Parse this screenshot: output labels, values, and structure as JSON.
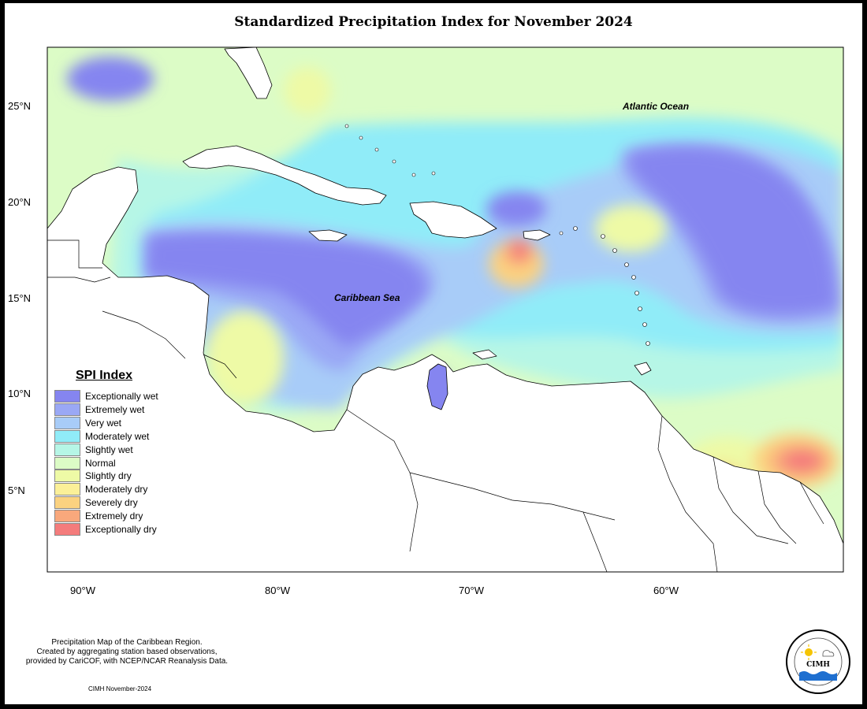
{
  "title": "Standardized Precipitation Index for November 2024",
  "axes": {
    "lat_ticks": [
      "25°N",
      "20°N",
      "15°N",
      "10°N",
      "5°N"
    ],
    "lon_ticks": [
      "90°W",
      "80°W",
      "70°W",
      "60°W"
    ]
  },
  "labels": {
    "atlantic": "Atlantic Ocean",
    "caribbean": "Caribbean Sea"
  },
  "legend": {
    "title": "SPI Index",
    "items": [
      {
        "label": "Exceptionally wet",
        "color": "#8585f0"
      },
      {
        "label": "Extremely wet",
        "color": "#9aa8f5"
      },
      {
        "label": "Very wet",
        "color": "#a8ccf8"
      },
      {
        "label": "Moderately wet",
        "color": "#90ecf8"
      },
      {
        "label": "Slightly wet",
        "color": "#b6f6e6"
      },
      {
        "label": "Normal",
        "color": "#dcfcc6"
      },
      {
        "label": "Slightly dry",
        "color": "#eefaa6"
      },
      {
        "label": "Moderately dry",
        "color": "#fbf098"
      },
      {
        "label": "Severely dry",
        "color": "#fbd280"
      },
      {
        "label": "Extremely dry",
        "color": "#f9a87c"
      },
      {
        "label": "Exceptionally dry",
        "color": "#f47c7c"
      }
    ]
  },
  "notes": {
    "line1": "Precipitation Map of the Caribbean Region.",
    "line2": "Created by aggregating station based observations,",
    "line3": "provided by CariCOF, with NCEP/NCAR Reanalysis Data."
  },
  "credit": "CIMH November-2024",
  "logo": {
    "text": "CIMH"
  }
}
